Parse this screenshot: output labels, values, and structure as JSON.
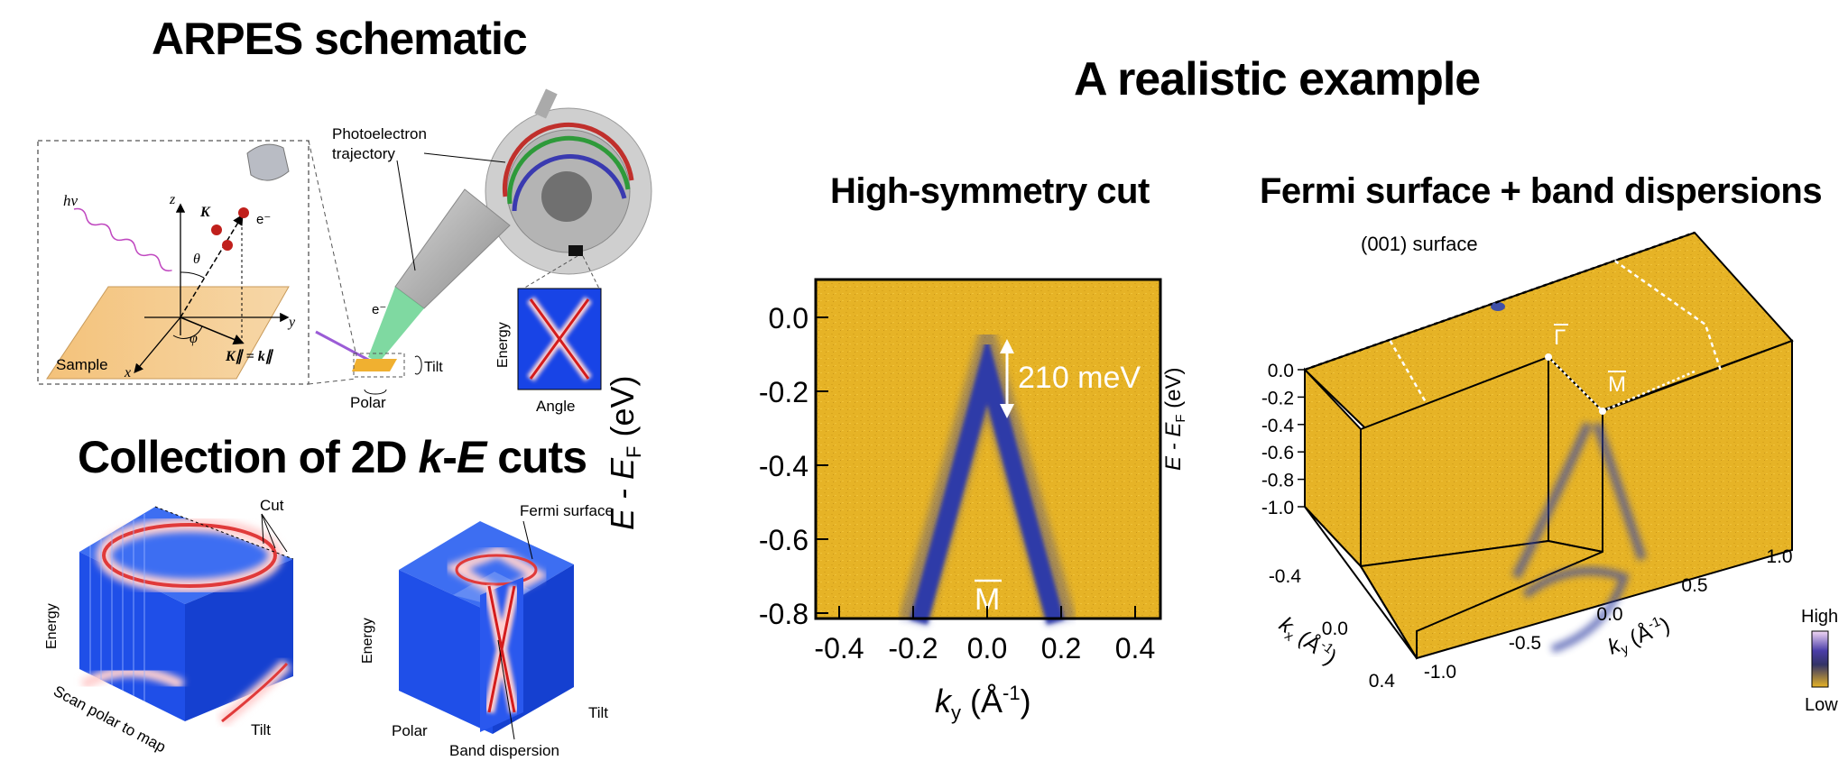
{
  "titles": {
    "arpes_schematic": "ARPES schematic",
    "collection_pre": "Collection of 2D ",
    "collection_k": "k",
    "collection_dash": "-",
    "collection_e": "E",
    "collection_post": " cuts",
    "realistic": "A realistic example",
    "high_symmetry": "High-symmetry cut",
    "fermi_surface": "Fermi surface + band dispersions"
  },
  "schematic": {
    "hv": "hν",
    "z": "z",
    "y": "y",
    "x": "x",
    "K": "K",
    "e_minus": "e⁻",
    "theta": "θ",
    "phi": "φ",
    "k_parallel": "K∥ = k∥",
    "sample": "Sample",
    "photoelectron": "Photoelectron",
    "trajectory": "trajectory",
    "e_minus_2": "e⁻",
    "tilt": "Tilt",
    "polar": "Polar",
    "energy": "Energy",
    "angle": "Angle"
  },
  "collection": {
    "cut": "Cut",
    "energy_left": "Energy",
    "tilt_left": "Tilt",
    "scan": "Scan polar to map",
    "fermi_surface": "Fermi surface",
    "energy_right": "Energy",
    "polar": "Polar",
    "tilt_right": "Tilt",
    "band_dispersion": "Band dispersion"
  },
  "cut_plot": {
    "yticks": [
      "0.0",
      "-0.2",
      "-0.4",
      "-0.6",
      "-0.8"
    ],
    "xticks": [
      "-0.4",
      "-0.2",
      "0.0",
      "0.2",
      "0.4"
    ],
    "ylabel": "E - E",
    "ylabel_sub": "F",
    "ylabel_unit": " (eV)",
    "xlabel_k": "k",
    "xlabel_sub": "y",
    "xlabel_unit": " (Å",
    "xlabel_sup": "-1",
    "xlabel_close": ")",
    "gap": "210 meV",
    "point": "M"
  },
  "fermi_plot": {
    "surface": "(001) surface",
    "gamma": "Γ",
    "m": "M",
    "zticks": [
      "0.0",
      "-0.2",
      "-0.4",
      "-0.6",
      "-0.8",
      "-1.0"
    ],
    "ylabel": "E - E",
    "ylabel_sub": "F",
    "ylabel_unit": " (eV)",
    "kx_ticks": [
      "-0.4",
      "0.0",
      "0.4"
    ],
    "kx_label": "k",
    "kx_sub": "x",
    "kx_unit": " (Å",
    "kx_sup": "-1",
    "kx_close": ")",
    "ky_ticks": [
      "-1.0",
      "-0.5",
      "0.0",
      "0.5",
      "1.0"
    ],
    "ky_label": "k",
    "ky_sub": "y",
    "ky_unit": " (Å",
    "ky_sup": "-1",
    "ky_close": ")",
    "high": "High",
    "low": "Low"
  },
  "colors": {
    "gold": "#e6b326",
    "blue": "#1844e6",
    "band": "#2a3aa8"
  }
}
